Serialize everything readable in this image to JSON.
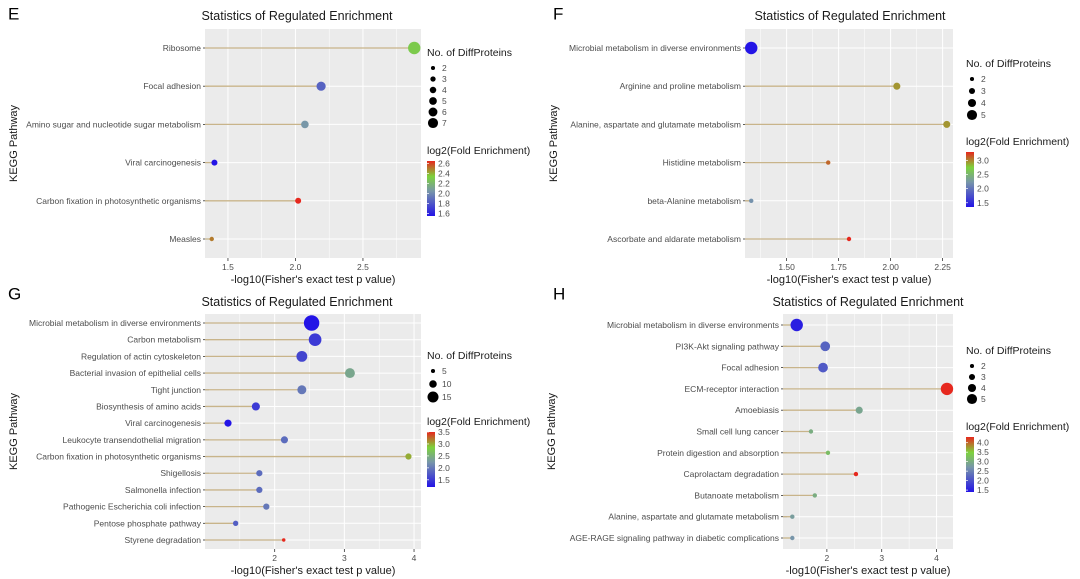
{
  "figure": {
    "panel_letters": [
      "E",
      "F",
      "G",
      "H"
    ]
  },
  "chart_data": [
    {
      "type": "scatter",
      "subtype": "lollipop",
      "panel": "E",
      "title": "Statistics of Regulated Enrichment",
      "xlabel": "-log10(Fisher's exact test p value)",
      "ylabel": "KEGG Pathway",
      "xlim": [
        1.33,
        2.93
      ],
      "x_ticks": [
        1.5,
        2.0,
        2.5
      ],
      "x_tick_labels": [
        "1.5",
        "2.0",
        "2.5"
      ],
      "categories": [
        "Ribosome",
        "Focal adhesion",
        "Amino sugar and nucleotide sugar metabolism",
        "Viral carcinogenesis",
        "Carbon fixation in photosynthetic organisms",
        "Measles"
      ],
      "x": [
        2.88,
        2.19,
        2.07,
        1.4,
        2.02,
        1.38
      ],
      "size": [
        7,
        5,
        4,
        3,
        3,
        2
      ],
      "color": [
        2.3,
        1.85,
        2.05,
        1.55,
        2.65,
        2.5
      ],
      "size_legend": {
        "title": "No. of DiffProteins",
        "values": [
          2,
          3,
          4,
          5,
          6,
          7
        ],
        "labels": [
          "2",
          "3",
          "4",
          "5",
          "6",
          "7"
        ]
      },
      "color_legend": {
        "title": "log2(Fold Enrichment)",
        "range": [
          1.55,
          2.65
        ],
        "ticks": [
          1.6,
          1.8,
          2.0,
          2.2,
          2.4,
          2.6
        ],
        "labels": [
          "1.6",
          "1.8",
          "2.0",
          "2.2",
          "2.4",
          "2.6"
        ]
      }
    },
    {
      "type": "scatter",
      "subtype": "lollipop",
      "panel": "F",
      "title": "Statistics of Regulated Enrichment",
      "xlabel": "-log10(Fisher's exact test p value)",
      "ylabel": "KEGG Pathway",
      "xlim": [
        1.3,
        2.3
      ],
      "x_ticks": [
        1.5,
        1.75,
        2.0,
        2.25
      ],
      "x_tick_labels": [
        "1.50",
        "1.75",
        "2.00",
        "2.25"
      ],
      "categories": [
        "Microbial metabolism in diverse environments",
        "Arginine and proline metabolism",
        "Alanine, aspartate and glutamate metabolism",
        "Histidine metabolism",
        "beta-Alanine metabolism",
        "Ascorbate and aldarate metabolism"
      ],
      "x": [
        1.33,
        2.03,
        2.27,
        1.7,
        1.33,
        1.8
      ],
      "size": [
        5,
        3,
        3,
        2,
        2,
        2
      ],
      "color": [
        1.35,
        2.95,
        2.95,
        3.1,
        2.2,
        3.3
      ],
      "size_legend": {
        "title": "No. of DiffProteins",
        "values": [
          2,
          3,
          4,
          5
        ],
        "labels": [
          "2",
          "3",
          "4",
          "5"
        ]
      },
      "color_legend": {
        "title": "log2(Fold Enrichment)",
        "range": [
          1.35,
          3.3
        ],
        "ticks": [
          1.5,
          2.0,
          2.5,
          3.0
        ],
        "labels": [
          "1.5",
          "2.0",
          "2.5",
          "3.0"
        ]
      }
    },
    {
      "type": "scatter",
      "subtype": "lollipop",
      "panel": "G",
      "title": "Statistics of Regulated Enrichment",
      "xlabel": "-log10(Fisher's exact test p value)",
      "ylabel": "KEGG Pathway",
      "xlim": [
        1.0,
        4.1
      ],
      "x_ticks": [
        2,
        3,
        4
      ],
      "x_tick_labels": [
        "2",
        "3",
        "4"
      ],
      "categories": [
        "Microbial metabolism in diverse environments",
        "Carbon metabolism",
        "Regulation of actin cytoskeleton",
        "Bacterial invasion of epithelial cells",
        "Tight junction",
        "Biosynthesis of amino acids",
        "Viral carcinogenesis",
        "Leukocyte transendothelial migration",
        "Carbon fixation in photosynthetic organisms",
        "Shigellosis",
        "Salmonella infection",
        "Pathogenic Escherichia coli infection",
        "Pentose phosphate pathway",
        "Styrene degradation"
      ],
      "x": [
        2.53,
        2.58,
        2.39,
        3.08,
        2.39,
        1.73,
        1.33,
        2.14,
        3.92,
        1.78,
        1.78,
        1.88,
        1.44,
        2.13
      ],
      "size": [
        17,
        14,
        12,
        11,
        10,
        9,
        8,
        8,
        7,
        7,
        7,
        7,
        6,
        4
      ],
      "color": [
        1.2,
        1.5,
        1.6,
        2.4,
        2.0,
        1.5,
        1.2,
        1.9,
        3.0,
        1.9,
        1.9,
        2.0,
        1.8,
        3.5
      ],
      "size_legend": {
        "title": "No. of DiffProteins",
        "values": [
          5,
          10,
          15
        ],
        "labels": [
          "5",
          "10",
          "15"
        ]
      },
      "color_legend": {
        "title": "log2(Fold Enrichment)",
        "range": [
          1.2,
          3.5
        ],
        "ticks": [
          1.5,
          2.0,
          2.5,
          3.0,
          3.5
        ],
        "labels": [
          "1.5",
          "2.0",
          "2.5",
          "3.0",
          "3.5"
        ]
      }
    },
    {
      "type": "scatter",
      "subtype": "lollipop",
      "panel": "H",
      "title": "Statistics of Regulated Enrichment",
      "xlabel": "-log10(Fisher's exact test p value)",
      "ylabel": "KEGG Pathway",
      "xlim": [
        1.2,
        4.3
      ],
      "x_ticks": [
        2,
        3,
        4
      ],
      "x_tick_labels": [
        "2",
        "3",
        "4"
      ],
      "categories": [
        "Microbial metabolism in diverse environments",
        "PI3K-Akt signaling pathway",
        "Focal adhesion",
        "ECM-receptor interaction",
        "Amoebiasis",
        "Small cell lung cancer",
        "Protein digestion and absorption",
        "Caprolactam degradation",
        "Butanoate metabolism",
        "Alanine, aspartate and glutamate metabolism",
        "AGE-RAGE signaling pathway in diabetic complications"
      ],
      "x": [
        1.45,
        1.97,
        1.93,
        4.19,
        2.59,
        1.71,
        2.02,
        2.53,
        1.78,
        1.37,
        1.37
      ],
      "size": [
        5,
        4,
        4,
        5,
        3,
        2,
        2,
        2,
        2,
        2,
        2
      ],
      "color": [
        1.5,
        2.2,
        2.1,
        4.3,
        2.9,
        3.0,
        3.2,
        4.3,
        3.0,
        2.8,
        2.7
      ],
      "size_legend": {
        "title": "No. of DiffProteins",
        "values": [
          2,
          3,
          4,
          5
        ],
        "labels": [
          "2",
          "3",
          "4",
          "5"
        ]
      },
      "color_legend": {
        "title": "log2(Fold Enrichment)",
        "range": [
          1.4,
          4.3
        ],
        "ticks": [
          1.5,
          2.0,
          2.5,
          3.0,
          3.5,
          4.0
        ],
        "labels": [
          "1.5",
          "2.0",
          "2.5",
          "3.0",
          "3.5",
          "4.0"
        ]
      }
    }
  ]
}
